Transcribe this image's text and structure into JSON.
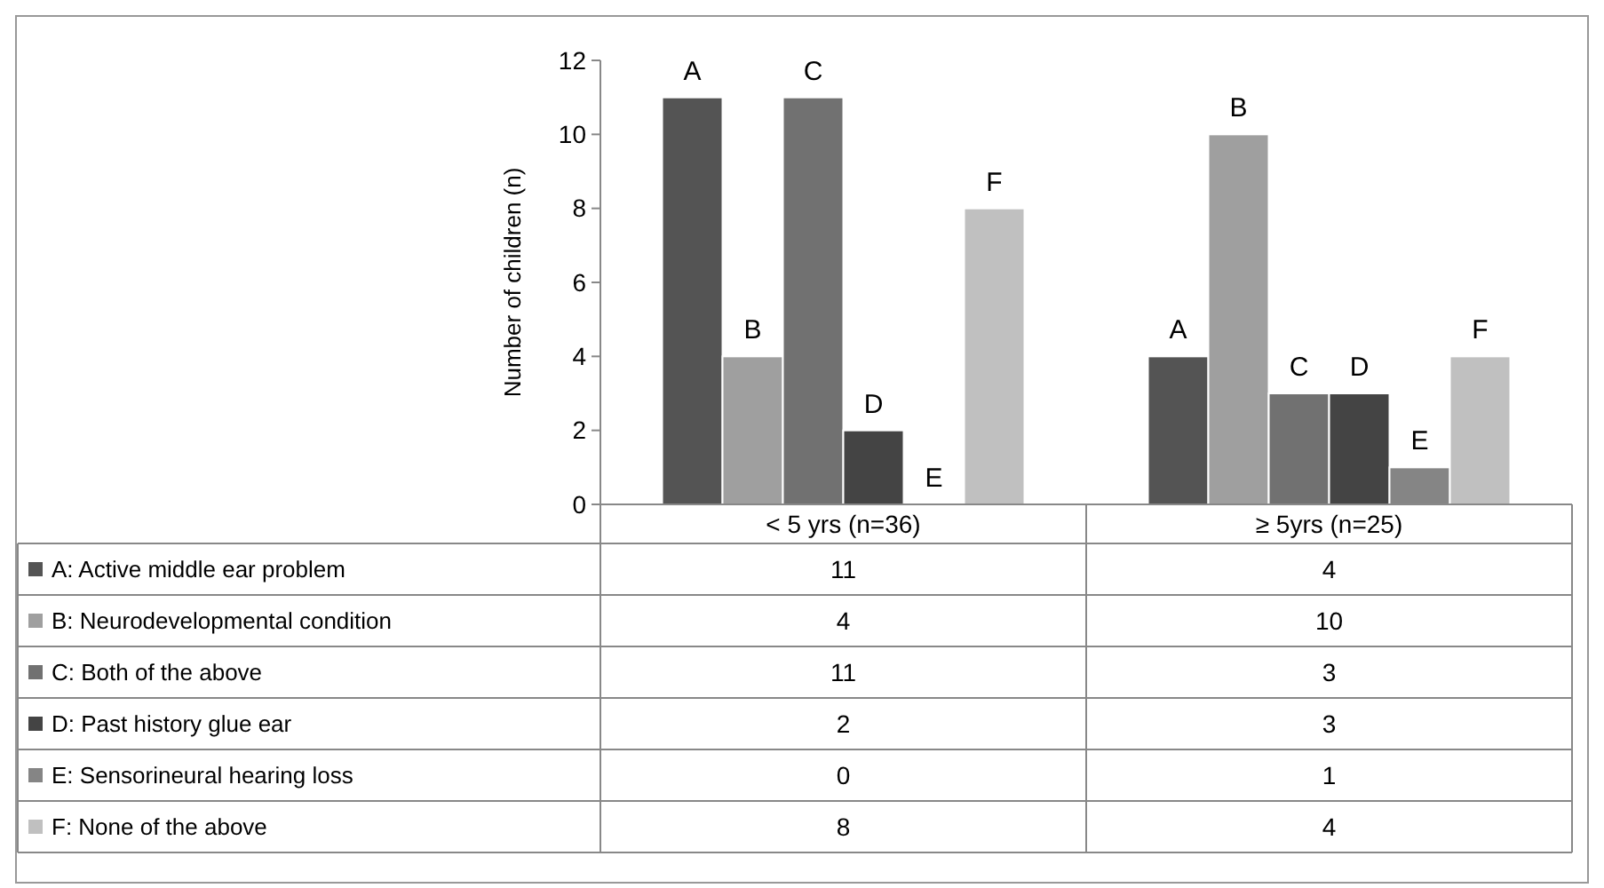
{
  "chart_data": {
    "type": "bar",
    "ylabel": "Number of children (n)",
    "categories": [
      "< 5 yrs (n=36)",
      "≥ 5yrs (n=25)"
    ],
    "series": [
      {
        "name": "A: Active middle ear problem",
        "color": "#545454",
        "values": [
          11,
          4
        ]
      },
      {
        "name": "B: Neurodevelopmental condition",
        "color": "#9f9f9f",
        "values": [
          4,
          10
        ]
      },
      {
        "name": "C: Both of the above",
        "color": "#717171",
        "values": [
          11,
          3
        ]
      },
      {
        "name": "D: Past history glue ear",
        "color": "#444444",
        "values": [
          2,
          3
        ]
      },
      {
        "name": "E: Sensorineural hearing loss",
        "color": "#858585",
        "values": [
          0,
          1
        ]
      },
      {
        "name": "F: None of the above",
        "color": "#c0c0c0",
        "values": [
          8,
          4
        ]
      }
    ],
    "ylim": [
      0,
      12
    ],
    "yticks": [
      0,
      2,
      4,
      6,
      8,
      10,
      12
    ],
    "grid": false,
    "legend": "bottom",
    "data_labels": true,
    "annotations": [
      "A",
      "A",
      "B",
      "B",
      "C",
      "C",
      "D",
      "D",
      "E",
      "E",
      "F",
      "F"
    ]
  }
}
